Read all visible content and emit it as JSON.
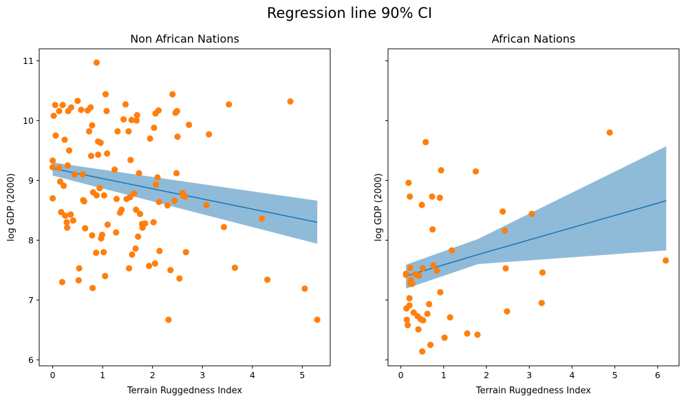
{
  "suptitle": "Regression line 90% CI",
  "colors": {
    "points": "#ff7f0e",
    "line": "#1f77b4",
    "band": "#1f77b4",
    "band_opacity": 0.5
  },
  "chart_data": [
    {
      "type": "scatter",
      "title": "Non African Nations",
      "xlabel": "Terrain Ruggedness Index",
      "ylabel": "log GDP (2000)",
      "xlim": [
        -0.27,
        5.56
      ],
      "ylim": [
        5.9,
        11.2
      ],
      "xticks": [
        0,
        1,
        2,
        3,
        4,
        5
      ],
      "xtick_labels": [
        "0",
        "1",
        "2",
        "3",
        "4",
        "5"
      ],
      "yticks": [
        6,
        7,
        8,
        9,
        10,
        11
      ],
      "ytick_labels": [
        "6",
        "7",
        "8",
        "9",
        "10",
        "11"
      ],
      "show_ytick_labels": true,
      "regression": {
        "x": [
          0.0,
          5.3
        ],
        "y": [
          9.2,
          8.3
        ],
        "ci_lower": [
          9.08,
          7.94
        ],
        "ci_upper": [
          9.3,
          8.66
        ]
      },
      "points": [
        [
          0.0,
          9.33
        ],
        [
          0.0,
          9.22
        ],
        [
          0.0,
          8.7
        ],
        [
          0.02,
          10.08
        ],
        [
          0.05,
          10.26
        ],
        [
          0.06,
          9.75
        ],
        [
          0.13,
          9.21
        ],
        [
          0.13,
          10.16
        ],
        [
          0.15,
          8.98
        ],
        [
          0.17,
          8.47
        ],
        [
          0.19,
          7.3
        ],
        [
          0.2,
          10.26
        ],
        [
          0.22,
          8.91
        ],
        [
          0.24,
          9.68
        ],
        [
          0.25,
          8.41
        ],
        [
          0.28,
          8.3
        ],
        [
          0.29,
          8.21
        ],
        [
          0.3,
          9.25
        ],
        [
          0.31,
          10.16
        ],
        [
          0.33,
          9.5
        ],
        [
          0.36,
          8.43
        ],
        [
          0.37,
          10.22
        ],
        [
          0.41,
          8.33
        ],
        [
          0.44,
          9.1
        ],
        [
          0.5,
          10.33
        ],
        [
          0.52,
          7.33
        ],
        [
          0.53,
          7.53
        ],
        [
          0.57,
          10.18
        ],
        [
          0.6,
          9.1
        ],
        [
          0.61,
          8.67
        ],
        [
          0.63,
          8.65
        ],
        [
          0.65,
          8.2
        ],
        [
          0.7,
          10.17
        ],
        [
          0.73,
          9.82
        ],
        [
          0.76,
          10.22
        ],
        [
          0.77,
          9.41
        ],
        [
          0.79,
          9.92
        ],
        [
          0.79,
          8.08
        ],
        [
          0.8,
          7.2
        ],
        [
          0.81,
          8.8
        ],
        [
          0.87,
          7.79
        ],
        [
          0.88,
          8.75
        ],
        [
          0.88,
          10.97
        ],
        [
          0.91,
          9.65
        ],
        [
          0.91,
          9.43
        ],
        [
          0.94,
          8.87
        ],
        [
          0.96,
          9.63
        ],
        [
          0.97,
          8.03
        ],
        [
          0.99,
          8.09
        ],
        [
          1.02,
          7.8
        ],
        [
          1.03,
          8.75
        ],
        [
          1.05,
          7.4
        ],
        [
          1.06,
          10.44
        ],
        [
          1.08,
          10.16
        ],
        [
          1.09,
          9.45
        ],
        [
          1.1,
          8.26
        ],
        [
          1.24,
          9.18
        ],
        [
          1.27,
          8.13
        ],
        [
          1.28,
          8.69
        ],
        [
          1.3,
          9.82
        ],
        [
          1.35,
          8.46
        ],
        [
          1.38,
          8.51
        ],
        [
          1.42,
          10.02
        ],
        [
          1.46,
          10.27
        ],
        [
          1.48,
          8.69
        ],
        [
          1.52,
          9.82
        ],
        [
          1.53,
          7.53
        ],
        [
          1.55,
          8.72
        ],
        [
          1.56,
          9.34
        ],
        [
          1.58,
          10.01
        ],
        [
          1.59,
          7.76
        ],
        [
          1.63,
          8.78
        ],
        [
          1.66,
          7.86
        ],
        [
          1.67,
          8.51
        ],
        [
          1.68,
          10.0
        ],
        [
          1.69,
          10.09
        ],
        [
          1.71,
          8.06
        ],
        [
          1.73,
          9.12
        ],
        [
          1.75,
          8.44
        ],
        [
          1.79,
          8.27
        ],
        [
          1.8,
          8.21
        ],
        [
          1.85,
          8.28
        ],
        [
          1.93,
          7.57
        ],
        [
          1.95,
          9.7
        ],
        [
          2.02,
          8.3
        ],
        [
          2.03,
          9.88
        ],
        [
          2.05,
          7.61
        ],
        [
          2.06,
          10.12
        ],
        [
          2.07,
          8.93
        ],
        [
          2.1,
          9.05
        ],
        [
          2.12,
          10.17
        ],
        [
          2.13,
          8.64
        ],
        [
          2.14,
          7.82
        ],
        [
          2.3,
          8.58
        ],
        [
          2.32,
          6.67
        ],
        [
          2.36,
          7.5
        ],
        [
          2.4,
          10.44
        ],
        [
          2.44,
          8.66
        ],
        [
          2.46,
          10.13
        ],
        [
          2.48,
          9.12
        ],
        [
          2.49,
          10.16
        ],
        [
          2.5,
          9.73
        ],
        [
          2.54,
          7.36
        ],
        [
          2.6,
          8.79
        ],
        [
          2.62,
          8.74
        ],
        [
          2.65,
          8.73
        ],
        [
          2.67,
          7.8
        ],
        [
          2.73,
          9.93
        ],
        [
          3.08,
          8.59
        ],
        [
          3.13,
          9.77
        ],
        [
          3.43,
          8.22
        ],
        [
          3.53,
          10.27
        ],
        [
          3.65,
          7.54
        ],
        [
          4.19,
          8.36
        ],
        [
          4.3,
          7.34
        ],
        [
          4.76,
          10.32
        ],
        [
          5.05,
          7.19
        ],
        [
          5.3,
          6.67
        ]
      ]
    },
    {
      "type": "scatter",
      "title": "African Nations",
      "xlabel": "Terrain Ruggedness Index",
      "ylabel": "log GDP (2000)",
      "xlim": [
        -0.3,
        6.5
      ],
      "ylim": [
        5.9,
        11.2
      ],
      "xticks": [
        0,
        1,
        2,
        3,
        4,
        5,
        6
      ],
      "xtick_labels": [
        "0",
        "1",
        "2",
        "3",
        "4",
        "5",
        "6"
      ],
      "yticks": [
        6,
        7,
        8,
        9,
        10,
        11
      ],
      "ytick_labels": [
        "6",
        "7",
        "8",
        "9",
        "10",
        "11"
      ],
      "show_ytick_labels": false,
      "regression": {
        "x": [
          0.12,
          1.8,
          6.2
        ],
        "y": [
          7.4,
          7.76,
          8.66
        ],
        "ci_lower": [
          7.19,
          7.6,
          7.83
        ],
        "ci_upper": [
          7.59,
          8.02,
          9.57
        ]
      },
      "points": [
        [
          0.12,
          7.44
        ],
        [
          0.12,
          7.42
        ],
        [
          0.13,
          6.86
        ],
        [
          0.14,
          6.67
        ],
        [
          0.16,
          6.58
        ],
        [
          0.18,
          8.96
        ],
        [
          0.2,
          7.03
        ],
        [
          0.2,
          6.91
        ],
        [
          0.21,
          8.73
        ],
        [
          0.22,
          7.54
        ],
        [
          0.22,
          7.28
        ],
        [
          0.23,
          7.33
        ],
        [
          0.26,
          7.27
        ],
        [
          0.3,
          6.79
        ],
        [
          0.34,
          7.43
        ],
        [
          0.39,
          6.73
        ],
        [
          0.41,
          6.51
        ],
        [
          0.42,
          7.41
        ],
        [
          0.46,
          6.68
        ],
        [
          0.49,
          8.59
        ],
        [
          0.5,
          6.14
        ],
        [
          0.51,
          7.53
        ],
        [
          0.52,
          6.66
        ],
        [
          0.58,
          9.64
        ],
        [
          0.62,
          6.77
        ],
        [
          0.66,
          6.93
        ],
        [
          0.69,
          6.25
        ],
        [
          0.73,
          8.73
        ],
        [
          0.74,
          8.18
        ],
        [
          0.76,
          7.58
        ],
        [
          0.84,
          7.49
        ],
        [
          0.91,
          8.71
        ],
        [
          0.92,
          7.13
        ],
        [
          0.94,
          9.17
        ],
        [
          1.02,
          6.37
        ],
        [
          1.15,
          6.71
        ],
        [
          1.19,
          7.83
        ],
        [
          1.55,
          6.44
        ],
        [
          1.75,
          9.15
        ],
        [
          1.79,
          6.42
        ],
        [
          2.38,
          8.48
        ],
        [
          2.43,
          8.16
        ],
        [
          2.45,
          7.53
        ],
        [
          2.48,
          6.81
        ],
        [
          3.06,
          8.44
        ],
        [
          3.29,
          6.95
        ],
        [
          3.31,
          7.46
        ],
        [
          4.88,
          9.8
        ],
        [
          6.19,
          7.66
        ]
      ]
    }
  ]
}
